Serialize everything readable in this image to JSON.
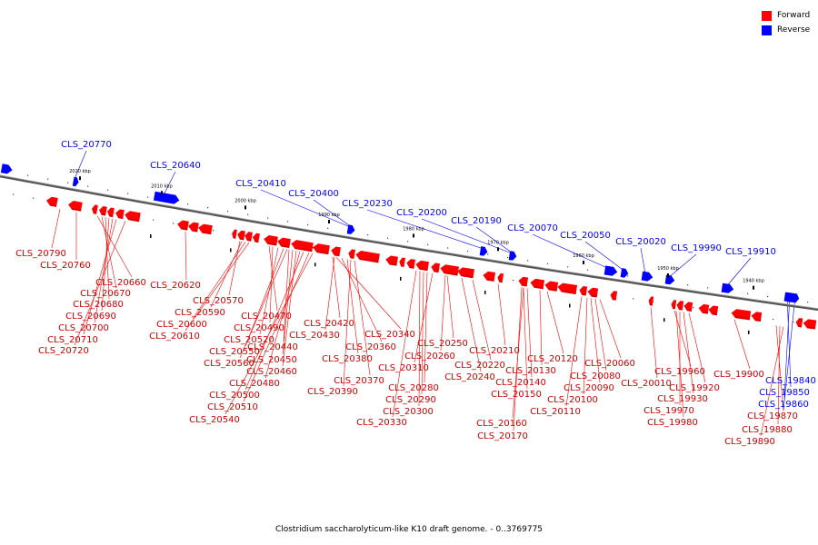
{
  "legend": {
    "forward_label": "Forward",
    "reverse_label": "Reverse",
    "forward_color": "#ff0000",
    "reverse_color": "#0000ff"
  },
  "caption": "Clostridium saccharolyticum-like K10 draft genome. - 0..3769775",
  "genome": {
    "kbp_markers": [
      "2020 kbp",
      "2010 kbp",
      "2000 kbp",
      "1990 kbp",
      "1980 kbp",
      "1970 kbp",
      "1960 kbp",
      "1950 kbp",
      "1940 kbp"
    ],
    "reverse_labels": [
      "CLS_20770",
      "CLS_20640",
      "CLS_20410",
      "CLS_20400",
      "CLS_20230",
      "CLS_20200",
      "CLS_20190",
      "CLS_20070",
      "CLS_20050",
      "CLS_20020",
      "CLS_19990",
      "CLS_19910",
      "CLS_19840",
      "CLS_19850",
      "CLS_19860"
    ],
    "forward_labels": [
      "CLS_20790",
      "CLS_20760",
      "CLS_20660",
      "CLS_20670",
      "CLS_20680",
      "CLS_20690",
      "CLS_20700",
      "CLS_20710",
      "CLS_20720",
      "CLS_20620",
      "CLS_20570",
      "CLS_20590",
      "CLS_20600",
      "CLS_20610",
      "CLS_20470",
      "CLS_20490",
      "CLS_20520",
      "CLS_20550",
      "CLS_20560",
      "CLS_20440",
      "CLS_20450",
      "CLS_20460",
      "CLS_20480",
      "CLS_20500",
      "CLS_20510",
      "CLS_20540",
      "CLS_20420",
      "CLS_20430",
      "CLS_20340",
      "CLS_20360",
      "CLS_20380",
      "CLS_20370",
      "CLS_20390",
      "CLS_20250",
      "CLS_20260",
      "CLS_20310",
      "CLS_20280",
      "CLS_20290",
      "CLS_20300",
      "CLS_20330",
      "CLS_20240",
      "CLS_20220",
      "CLS_20210",
      "CLS_20120",
      "CLS_20130",
      "CLS_20140",
      "CLS_20150",
      "CLS_20160",
      "CLS_20170",
      "CLS_20060",
      "CLS_20080",
      "CLS_20090",
      "CLS_20100",
      "CLS_20110",
      "CLS_20010",
      "CLS_19960",
      "CLS_19920",
      "CLS_19930",
      "CLS_19970",
      "CLS_19980",
      "CLS_19900",
      "CLS_19870",
      "CLS_19880",
      "CLS_19890"
    ]
  }
}
